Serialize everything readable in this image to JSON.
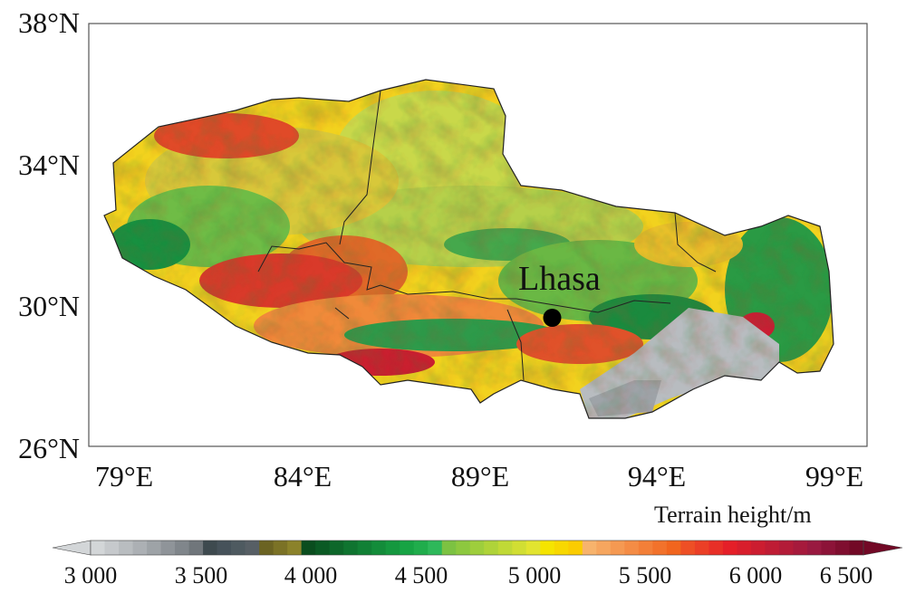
{
  "map": {
    "y_ticks": [
      "38°N",
      "34°N",
      "30°N",
      "26°N"
    ],
    "x_ticks": [
      "79°E",
      "84°E",
      "89°E",
      "94°E",
      "99°E"
    ],
    "lat_range": [
      26,
      38
    ],
    "lon_range": [
      78,
      100
    ],
    "city": {
      "name": "Lhasa",
      "lon": 91.1,
      "lat": 29.65
    }
  },
  "colorbar": {
    "title": "Terrain height/m",
    "tick_labels": [
      "3 000",
      "3 500",
      "4 000",
      "4 500",
      "5 000",
      "5 500",
      "6 000",
      "6 500"
    ],
    "min": 3000,
    "max": 6500,
    "colors": [
      "#d3d6d8",
      "#c6c9cc",
      "#b9bdc0",
      "#acb0b4",
      "#9ea3a7",
      "#8f9499",
      "#80868b",
      "#70767b",
      "#3e4a4f",
      "#46525a",
      "#4e5a60",
      "#575f65",
      "#6b6322",
      "#7b7226",
      "#8b822a",
      "#0a4d1e",
      "#0b5a24",
      "#0d672a",
      "#0f7430",
      "#118035",
      "#138c3a",
      "#15983f",
      "#17a444",
      "#20ad4c",
      "#2eb85a",
      "#7cc242",
      "#8dc83f",
      "#9ece3c",
      "#afd339",
      "#c0d936",
      "#d1de33",
      "#e2e430",
      "#f5e400",
      "#f8d800",
      "#fbcc00",
      "#f7b36c",
      "#f6a65f",
      "#f59952",
      "#f48c45",
      "#f37f38",
      "#f2722b",
      "#f1651e",
      "#ee4f25",
      "#eb3f26",
      "#e82f27",
      "#e51f28",
      "#d81e2c",
      "#cc1d30",
      "#bf1c34",
      "#b31b38",
      "#a61a3c",
      "#991940",
      "#8c1338",
      "#7f0e2f",
      "#720926"
    ]
  }
}
